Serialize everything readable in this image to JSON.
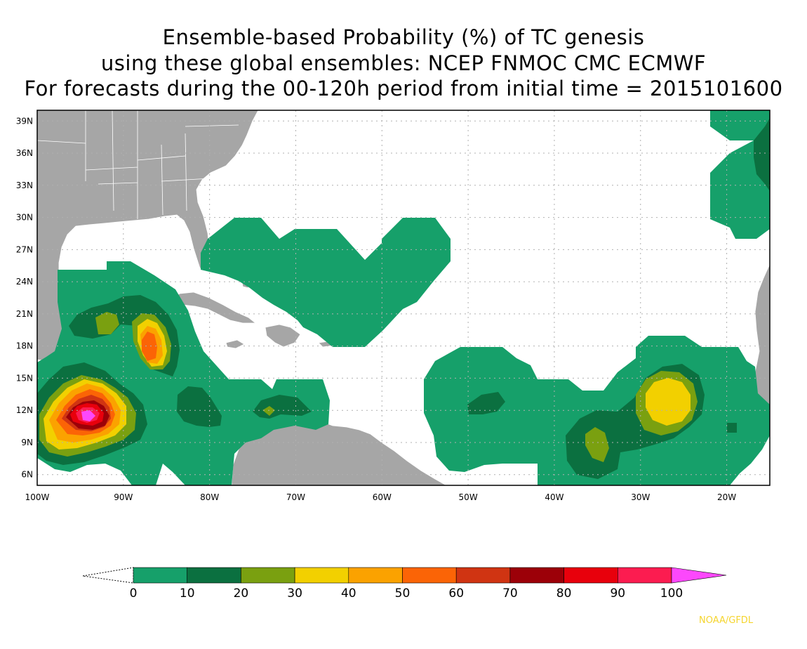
{
  "title": {
    "line1": "Ensemble-based Probability (%) of TC genesis",
    "line2": "using these global ensembles:   NCEP FNMOC CMC ECMWF",
    "line3": "For forecasts during the 00-120h period from initial time = 2015101600"
  },
  "map": {
    "lon_range": [
      -100,
      -15
    ],
    "lat_range": [
      5,
      40
    ],
    "lat_ticks": [
      "39N",
      "36N",
      "33N",
      "30N",
      "27N",
      "24N",
      "21N",
      "18N",
      "15N",
      "12N",
      "9N",
      "6N"
    ],
    "lon_ticks": [
      "100W",
      "90W",
      "80W",
      "70W",
      "60W",
      "50W",
      "40W",
      "30W",
      "20W"
    ],
    "grid": true,
    "colors": {
      "land": "#a6a6a6",
      "ocean": "#ffffff",
      "grid": "#b0b0b0"
    }
  },
  "colorbar": {
    "labels": [
      "0",
      "10",
      "20",
      "30",
      "40",
      "50",
      "60",
      "70",
      "80",
      "90",
      "100"
    ],
    "colors": [
      "#16a06a",
      "#0b7040",
      "#7aa010",
      "#f2d000",
      "#fba200",
      "#fb6406",
      "#d03412",
      "#9c0008",
      "#e8000c",
      "#fc1c50",
      "#fc48fc"
    ]
  },
  "credit": "NOAA/GFDL"
}
